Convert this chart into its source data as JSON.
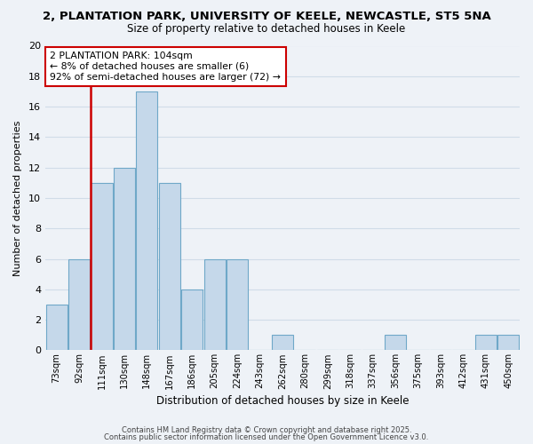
{
  "title": "2, PLANTATION PARK, UNIVERSITY OF KEELE, NEWCASTLE, ST5 5NA",
  "subtitle": "Size of property relative to detached houses in Keele",
  "xlabel": "Distribution of detached houses by size in Keele",
  "ylabel": "Number of detached properties",
  "bar_categories": [
    "73sqm",
    "92sqm",
    "111sqm",
    "130sqm",
    "148sqm",
    "167sqm",
    "186sqm",
    "205sqm",
    "224sqm",
    "243sqm",
    "262sqm",
    "280sqm",
    "299sqm",
    "318sqm",
    "337sqm",
    "356sqm",
    "375sqm",
    "393sqm",
    "412sqm",
    "431sqm",
    "450sqm"
  ],
  "bar_values": [
    3,
    6,
    11,
    12,
    17,
    11,
    4,
    6,
    6,
    0,
    1,
    0,
    0,
    0,
    0,
    1,
    0,
    0,
    0,
    1,
    1
  ],
  "bar_color": "#c5d8ea",
  "bar_edge_color": "#6fa8c8",
  "grid_color": "#d0dce8",
  "background_color": "#eef2f7",
  "property_line_color": "#cc0000",
  "annotation_line1": "2 PLANTATION PARK: 104sqm",
  "annotation_line2": "← 8% of detached houses are smaller (6)",
  "annotation_line3": "92% of semi-detached houses are larger (72) →",
  "annotation_box_color": "#ffffff",
  "annotation_box_edge": "#cc0000",
  "ylim": [
    0,
    20
  ],
  "yticks": [
    0,
    2,
    4,
    6,
    8,
    10,
    12,
    14,
    16,
    18,
    20
  ],
  "footer1": "Contains HM Land Registry data © Crown copyright and database right 2025.",
  "footer2": "Contains public sector information licensed under the Open Government Licence v3.0."
}
